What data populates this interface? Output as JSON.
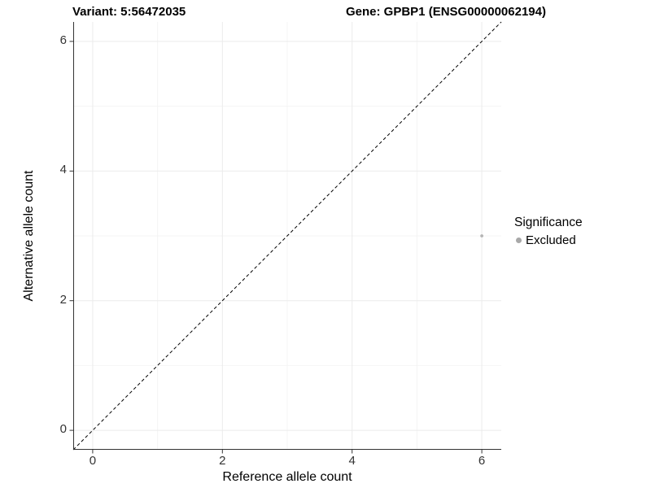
{
  "chart_data": {
    "type": "scatter",
    "title_left": "Variant: 5:56472035",
    "title_right": "Gene: GPBP1 (ENSG00000062194)",
    "xlabel": "Reference allele count",
    "ylabel": "Alternative allele count",
    "xlim": [
      -0.3,
      6.3
    ],
    "ylim": [
      -0.3,
      6.3
    ],
    "xticks": [
      0,
      2,
      4,
      6
    ],
    "yticks": [
      0,
      2,
      4,
      6
    ],
    "minor_ticks": [
      1,
      3,
      5
    ],
    "grid": true,
    "identity_line": {
      "style": "dashed",
      "color": "#000000",
      "slope": 1,
      "intercept": 0
    },
    "series": [
      {
        "name": "Excluded",
        "color": "#b4b4b4",
        "points": [
          {
            "x": 6,
            "y": 3
          }
        ]
      }
    ],
    "legend": {
      "position": "right",
      "title": "Significance",
      "items": [
        {
          "label": "Excluded",
          "color": "#a8a8a8"
        }
      ]
    },
    "colors": {
      "axis_line": "#333333",
      "tick_label": "#333333",
      "grid_major": "#ebebeb",
      "grid_minor": "#f4f4f4",
      "background": "#ffffff"
    }
  }
}
